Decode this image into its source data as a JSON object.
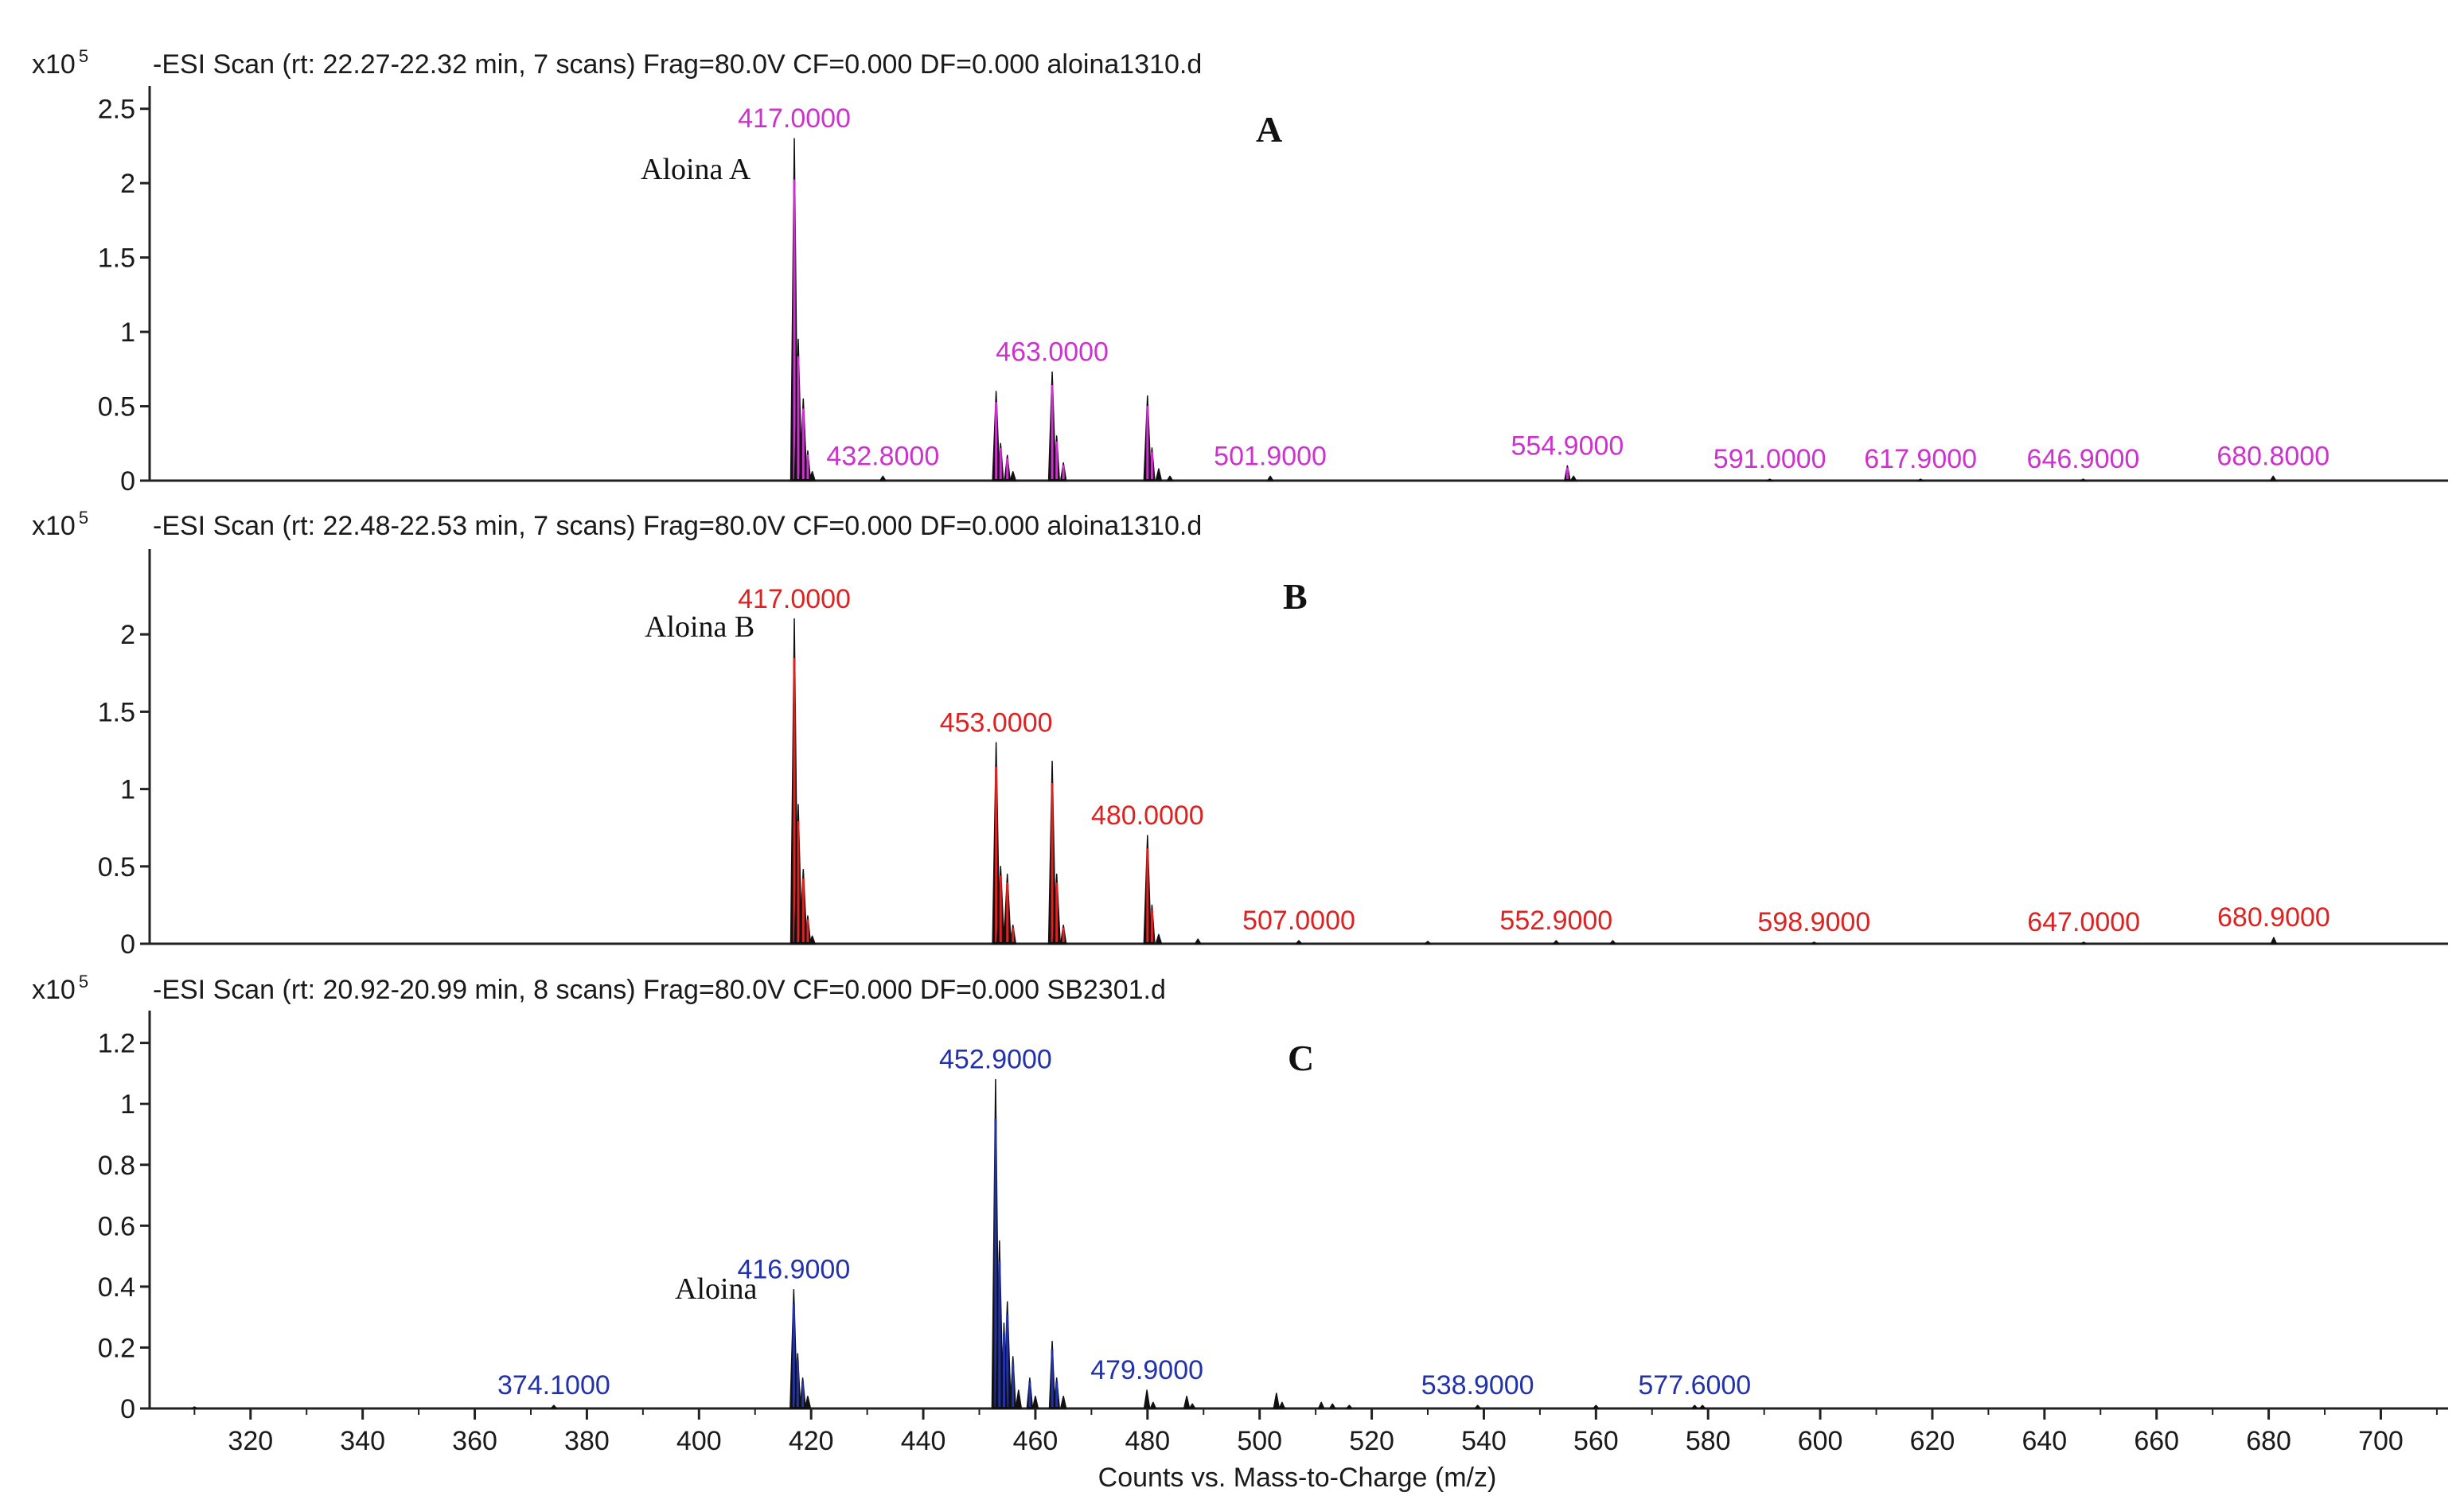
{
  "chart_data": {
    "type": "line",
    "x_axis_label": "Counts vs. Mass-to-Charge (m/z)",
    "x_range": [
      302,
      712
    ],
    "x_ticks": [
      320,
      340,
      360,
      380,
      400,
      420,
      440,
      460,
      480,
      500,
      520,
      540,
      560,
      580,
      600,
      620,
      640,
      660,
      680,
      700
    ],
    "multiplier": {
      "base": "x10",
      "exponent": "5"
    },
    "panels": [
      {
        "letter": "A",
        "header": "-ESI Scan (rt: 22.27-22.32 min, 7 scans) Frag=80.0V CF=0.000 DF=0.000 aloina1310.d",
        "ylim": [
          0,
          2.6
        ],
        "y_ticks": [
          0,
          0.5,
          1,
          1.5,
          2,
          2.5
        ],
        "y_tick_labels": [
          "0",
          "0.5",
          "1",
          "1.5",
          "2",
          "2.5"
        ],
        "series_color": "#cc33cc",
        "annotation": "Aloina A",
        "peaks": [
          {
            "mz": 417.0,
            "value": 2.3,
            "label": "417.0000"
          },
          {
            "mz": 417.7,
            "value": 0.95
          },
          {
            "mz": 418.6,
            "value": 0.55
          },
          {
            "mz": 419.4,
            "value": 0.2
          },
          {
            "mz": 420.2,
            "value": 0.06
          },
          {
            "mz": 432.8,
            "value": 0.03,
            "label": "432.8000"
          },
          {
            "mz": 453.0,
            "value": 0.6
          },
          {
            "mz": 453.8,
            "value": 0.25
          },
          {
            "mz": 455.0,
            "value": 0.17
          },
          {
            "mz": 456.0,
            "value": 0.06
          },
          {
            "mz": 463.0,
            "value": 0.73,
            "label": "463.0000"
          },
          {
            "mz": 463.8,
            "value": 0.3
          },
          {
            "mz": 465.0,
            "value": 0.12
          },
          {
            "mz": 480.0,
            "value": 0.57
          },
          {
            "mz": 480.8,
            "value": 0.22
          },
          {
            "mz": 482.0,
            "value": 0.08
          },
          {
            "mz": 484.0,
            "value": 0.03
          },
          {
            "mz": 501.9,
            "value": 0.03,
            "label": "501.9000"
          },
          {
            "mz": 554.9,
            "value": 0.1,
            "label": "554.9000"
          },
          {
            "mz": 556.0,
            "value": 0.03
          },
          {
            "mz": 591.0,
            "value": 0.01,
            "label": "591.0000"
          },
          {
            "mz": 617.9,
            "value": 0.01,
            "label": "617.9000"
          },
          {
            "mz": 646.9,
            "value": 0.01,
            "label": "646.9000"
          },
          {
            "mz": 680.8,
            "value": 0.03,
            "label": "680.8000"
          }
        ]
      },
      {
        "letter": "B",
        "header": "-ESI Scan (rt: 22.48-22.53 min, 7 scans) Frag=80.0V CF=0.000 DF=0.000 aloina1310.d",
        "ylim": [
          0,
          2.5
        ],
        "y_ticks": [
          0,
          0.5,
          1,
          1.5,
          2
        ],
        "y_tick_labels": [
          "0",
          "0.5",
          "1",
          "1.5",
          "2"
        ],
        "series_color": "#dd2222",
        "annotation": "Aloina B",
        "peaks": [
          {
            "mz": 417.0,
            "value": 2.1,
            "label": "417.0000"
          },
          {
            "mz": 417.7,
            "value": 0.9
          },
          {
            "mz": 418.6,
            "value": 0.48
          },
          {
            "mz": 419.4,
            "value": 0.18
          },
          {
            "mz": 420.2,
            "value": 0.05
          },
          {
            "mz": 453.0,
            "value": 1.3,
            "label": "453.0000"
          },
          {
            "mz": 453.8,
            "value": 0.5
          },
          {
            "mz": 455.0,
            "value": 0.45
          },
          {
            "mz": 456.0,
            "value": 0.12
          },
          {
            "mz": 463.0,
            "value": 1.18
          },
          {
            "mz": 463.8,
            "value": 0.45
          },
          {
            "mz": 465.0,
            "value": 0.12
          },
          {
            "mz": 480.0,
            "value": 0.7,
            "label": "480.0000"
          },
          {
            "mz": 480.8,
            "value": 0.25
          },
          {
            "mz": 482.0,
            "value": 0.06
          },
          {
            "mz": 489.0,
            "value": 0.03
          },
          {
            "mz": 507.0,
            "value": 0.02,
            "label": "507.0000"
          },
          {
            "mz": 530.0,
            "value": 0.015
          },
          {
            "mz": 552.9,
            "value": 0.02,
            "label": "552.9000"
          },
          {
            "mz": 563.0,
            "value": 0.02
          },
          {
            "mz": 598.9,
            "value": 0.01,
            "label": "598.9000"
          },
          {
            "mz": 647.0,
            "value": 0.01,
            "label": "647.0000"
          },
          {
            "mz": 680.9,
            "value": 0.04,
            "label": "680.9000"
          }
        ]
      },
      {
        "letter": "C",
        "header": "-ESI Scan (rt: 20.92-20.99 min, 8 scans) Frag=80.0V CF=0.000 DF=0.000 SB2301.d",
        "ylim": [
          0,
          1.28
        ],
        "y_ticks": [
          0,
          0.2,
          0.4,
          0.6,
          0.8,
          1,
          1.2
        ],
        "y_tick_labels": [
          "0",
          "0.2",
          "0.4",
          "0.6",
          "0.8",
          "1",
          "1.2"
        ],
        "series_color": "#2233aa",
        "annotation": "Aloina",
        "peaks": [
          {
            "mz": 310.0,
            "value": 0.005
          },
          {
            "mz": 374.1,
            "value": 0.01,
            "label": "374.1000"
          },
          {
            "mz": 416.9,
            "value": 0.39,
            "label": "416.9000"
          },
          {
            "mz": 417.6,
            "value": 0.18
          },
          {
            "mz": 418.5,
            "value": 0.1
          },
          {
            "mz": 419.4,
            "value": 0.04
          },
          {
            "mz": 452.9,
            "value": 1.08,
            "label": "452.9000"
          },
          {
            "mz": 453.6,
            "value": 0.55
          },
          {
            "mz": 454.4,
            "value": 0.28
          },
          {
            "mz": 455.0,
            "value": 0.35
          },
          {
            "mz": 456.0,
            "value": 0.17
          },
          {
            "mz": 457.0,
            "value": 0.06
          },
          {
            "mz": 459.0,
            "value": 0.1
          },
          {
            "mz": 460.0,
            "value": 0.04
          },
          {
            "mz": 463.0,
            "value": 0.22
          },
          {
            "mz": 463.8,
            "value": 0.1
          },
          {
            "mz": 465.0,
            "value": 0.04
          },
          {
            "mz": 479.9,
            "value": 0.06,
            "label": "479.9000"
          },
          {
            "mz": 481.0,
            "value": 0.02
          },
          {
            "mz": 487.0,
            "value": 0.04
          },
          {
            "mz": 488.0,
            "value": 0.015
          },
          {
            "mz": 503.0,
            "value": 0.05
          },
          {
            "mz": 504.0,
            "value": 0.02
          },
          {
            "mz": 511.0,
            "value": 0.02
          },
          {
            "mz": 513.0,
            "value": 0.015
          },
          {
            "mz": 516.0,
            "value": 0.01
          },
          {
            "mz": 538.9,
            "value": 0.01,
            "label": "538.9000"
          },
          {
            "mz": 560.0,
            "value": 0.01
          },
          {
            "mz": 577.6,
            "value": 0.01,
            "label": "577.6000"
          },
          {
            "mz": 579.0,
            "value": 0.01
          }
        ]
      }
    ]
  }
}
